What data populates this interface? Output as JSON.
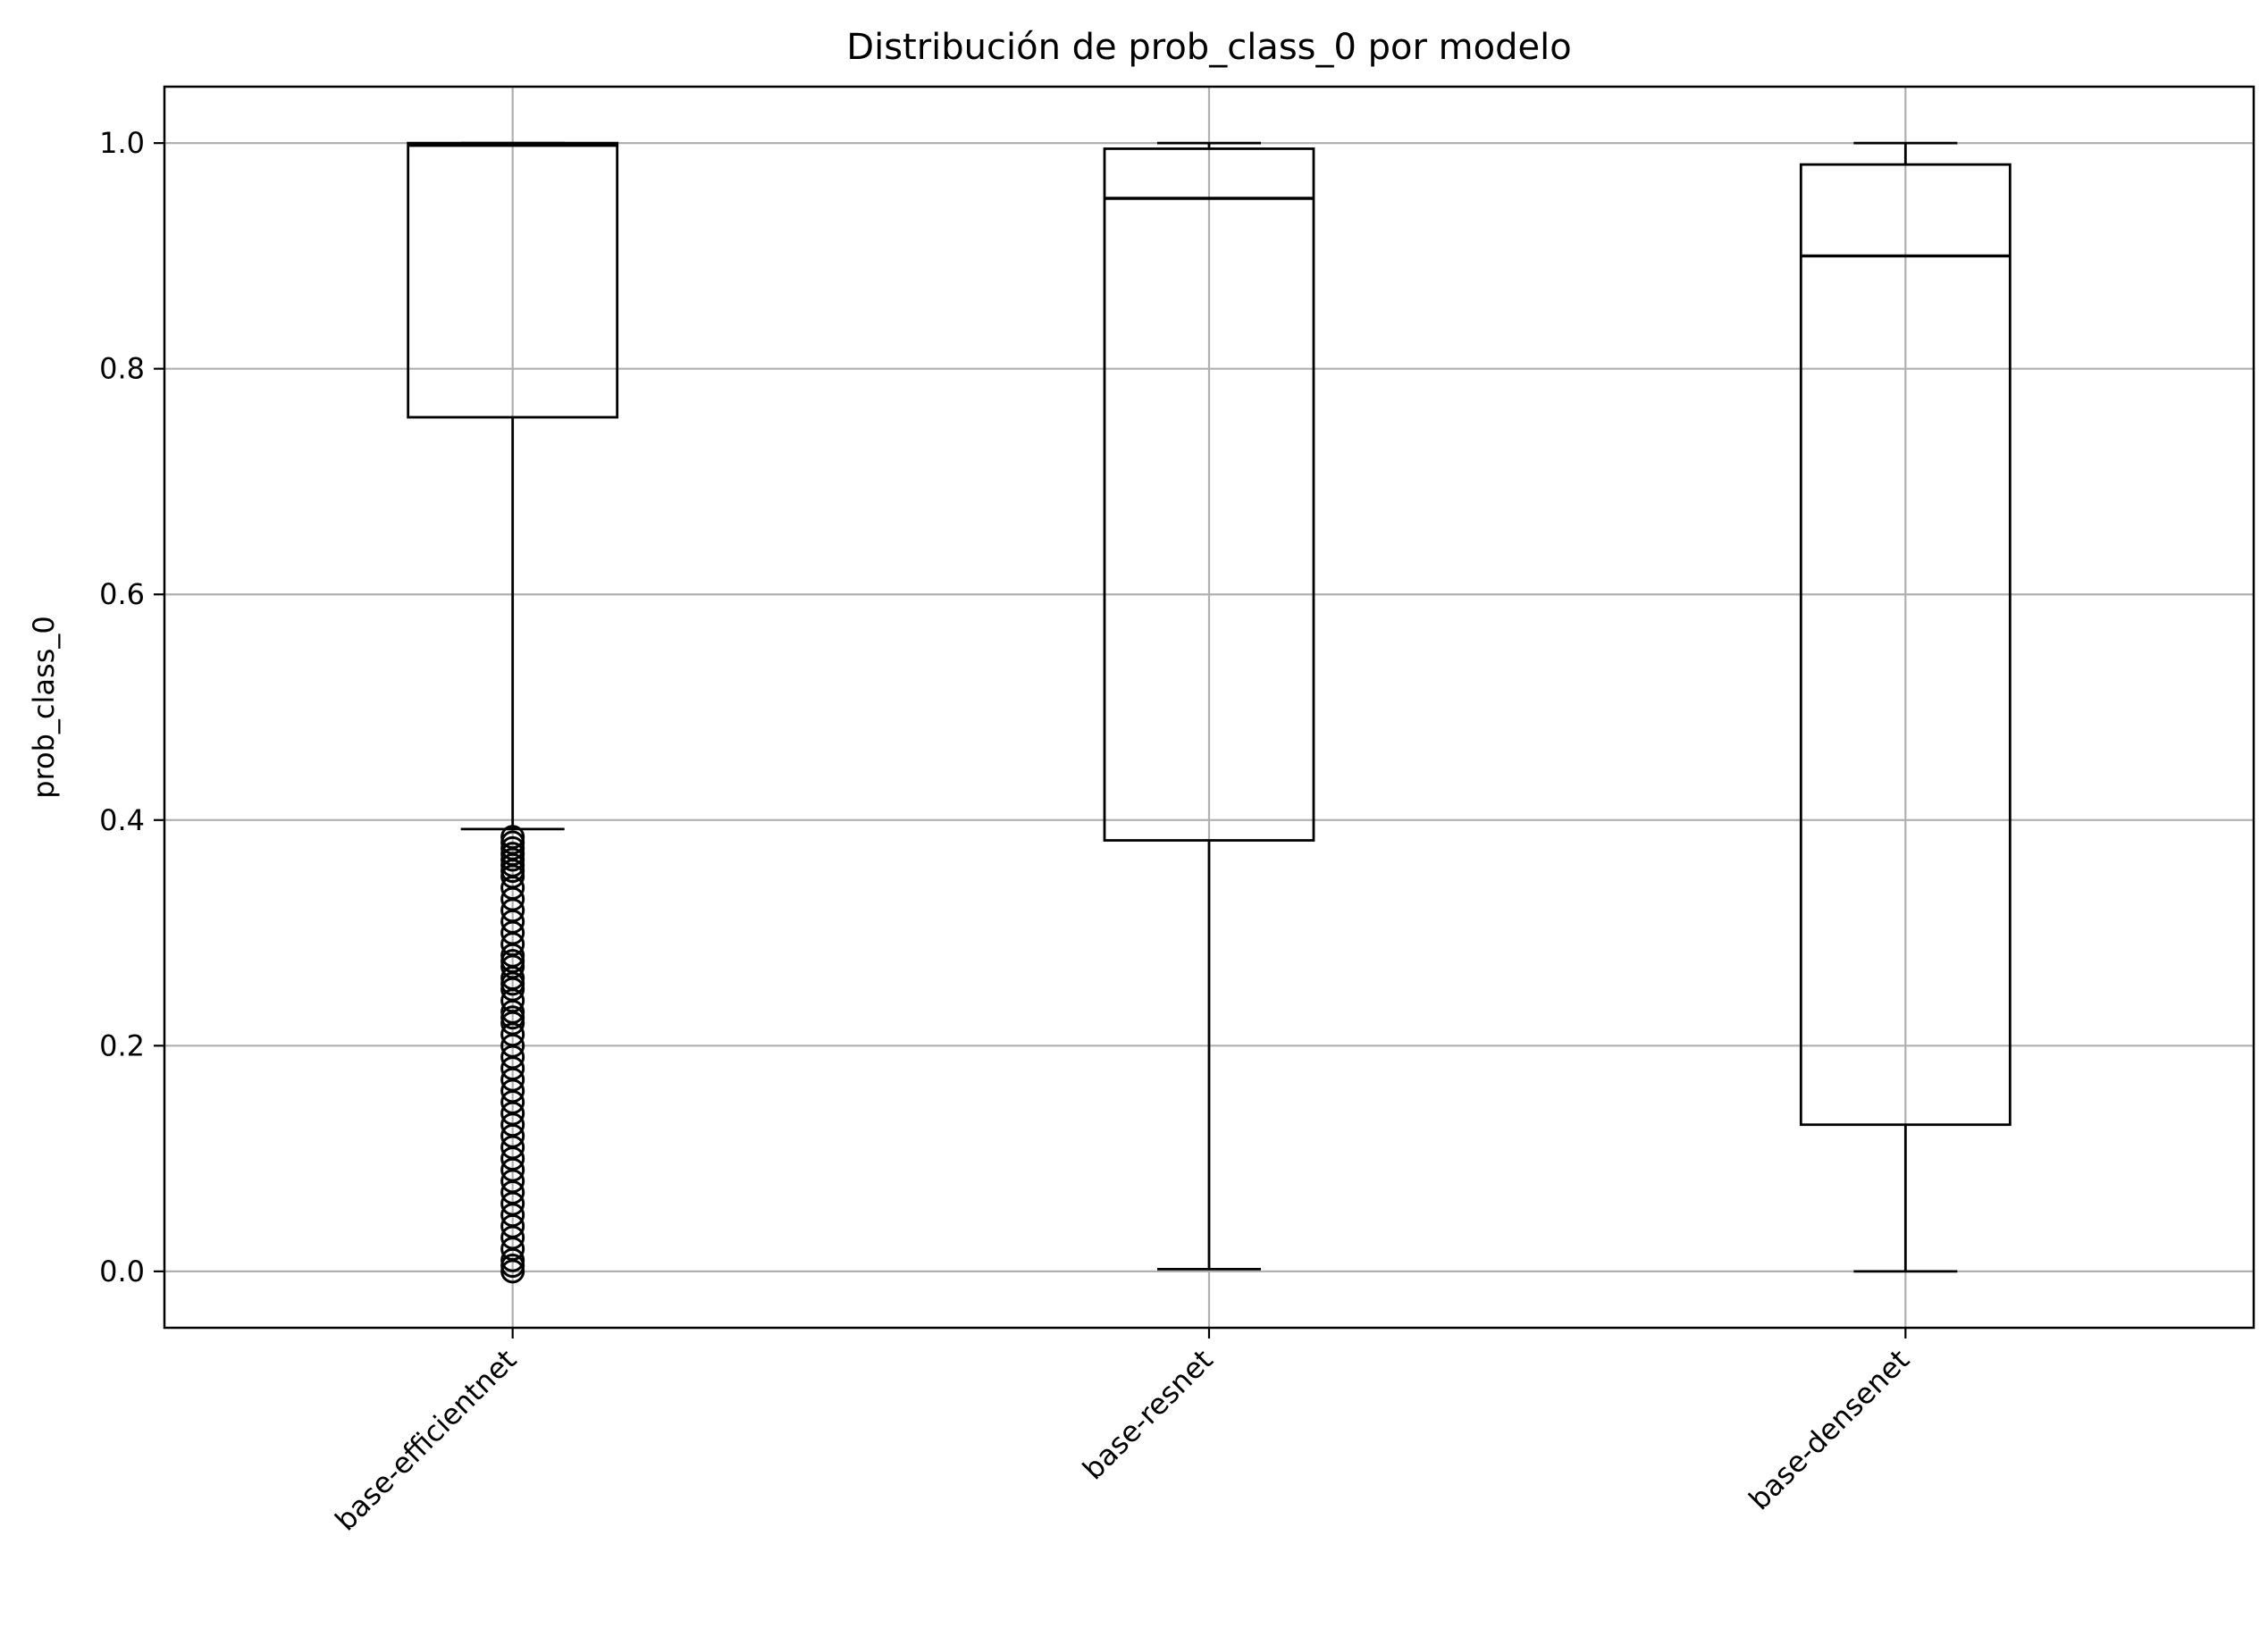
{
  "chart_data": {
    "type": "box",
    "title": "Distribución de prob_class_0 por modelo",
    "xlabel": "",
    "ylabel": "prob_class_0",
    "ylim": [
      -0.05,
      1.05
    ],
    "yticks": [
      0.0,
      0.2,
      0.4,
      0.6,
      0.8,
      1.0
    ],
    "ytick_labels": [
      "0.0",
      "0.2",
      "0.4",
      "0.6",
      "0.8",
      "1.0"
    ],
    "grid": true,
    "categories": [
      "base-efficientnet",
      "base-resnet",
      "base-densenet"
    ],
    "boxes": [
      {
        "name": "base-efficientnet",
        "whisker_low": 0.392,
        "q1": 0.757,
        "median": 0.998,
        "q3": 1.0,
        "whisker_high": 1.0,
        "outliers": [
          0.385,
          0.38,
          0.375,
          0.37,
          0.365,
          0.36,
          0.355,
          0.35,
          0.34,
          0.33,
          0.32,
          0.31,
          0.3,
          0.29,
          0.28,
          0.275,
          0.27,
          0.26,
          0.255,
          0.25,
          0.24,
          0.23,
          0.225,
          0.22,
          0.21,
          0.2,
          0.19,
          0.18,
          0.17,
          0.16,
          0.15,
          0.14,
          0.13,
          0.12,
          0.11,
          0.1,
          0.09,
          0.08,
          0.07,
          0.06,
          0.05,
          0.04,
          0.03,
          0.02,
          0.01,
          0.005,
          0.0
        ]
      },
      {
        "name": "base-resnet",
        "whisker_low": 0.002,
        "q1": 0.382,
        "median": 0.951,
        "q3": 0.995,
        "whisker_high": 1.0,
        "outliers": []
      },
      {
        "name": "base-densenet",
        "whisker_low": 0.0,
        "q1": 0.13,
        "median": 0.9,
        "q3": 0.981,
        "whisker_high": 1.0,
        "outliers": []
      }
    ],
    "colors": {
      "box": "#000000",
      "grid": "#b0b0b0",
      "background": "#ffffff"
    }
  }
}
